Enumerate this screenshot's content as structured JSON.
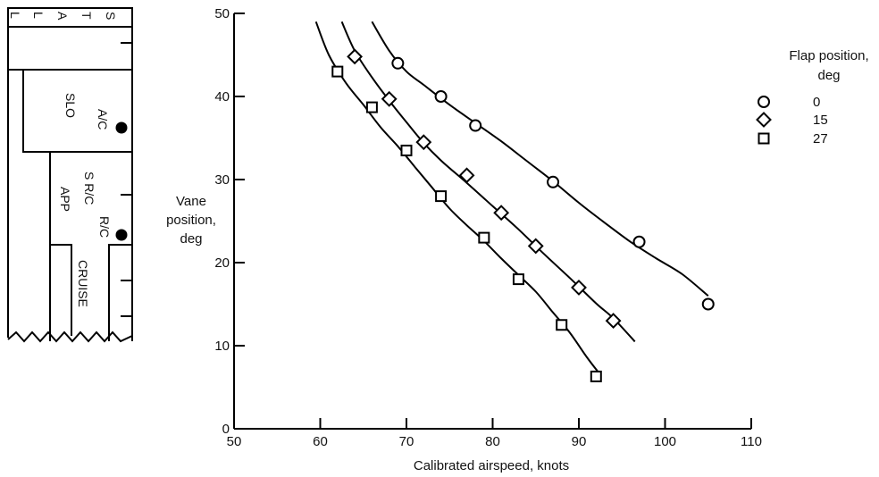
{
  "indicator": {
    "labels": {
      "stall": [
        "S",
        "T",
        "A",
        "L",
        "L"
      ],
      "slo": "SLO",
      "ac": "A/C",
      "src": "S R/C",
      "app": "APP",
      "rc": "R/C",
      "cruise": "CRUISE"
    }
  },
  "chart_data": {
    "type": "scatter",
    "xlabel": "Calibrated airspeed,  knots",
    "ylabel": [
      "Vane",
      "position,",
      "deg"
    ],
    "xlim": [
      50,
      110
    ],
    "ylim": [
      0,
      50
    ],
    "xticks": [
      50,
      60,
      70,
      80,
      90,
      100,
      110
    ],
    "yticks": [
      0,
      10,
      20,
      30,
      40,
      50
    ],
    "grid": false,
    "legend": {
      "title": [
        "Flap position,",
        "deg"
      ],
      "placement": "top-right",
      "entries": [
        "0",
        "15",
        "27"
      ]
    },
    "series": [
      {
        "name": "0",
        "marker": "circle",
        "points": [
          [
            69,
            44
          ],
          [
            74,
            40
          ],
          [
            78,
            36.5
          ],
          [
            87,
            29.7
          ],
          [
            97,
            22.5
          ],
          [
            105,
            15
          ]
        ],
        "curve": [
          [
            66,
            49
          ],
          [
            68,
            45.5
          ],
          [
            70,
            43
          ],
          [
            72,
            41.4
          ],
          [
            75,
            39
          ],
          [
            78,
            36.8
          ],
          [
            81,
            34.6
          ],
          [
            84,
            32.2
          ],
          [
            87,
            29.8
          ],
          [
            90,
            27.2
          ],
          [
            93,
            24.8
          ],
          [
            96,
            22.5
          ],
          [
            99,
            20.5
          ],
          [
            102,
            18.6
          ],
          [
            105,
            16
          ]
        ]
      },
      {
        "name": "15",
        "marker": "diamond",
        "points": [
          [
            64,
            44.8
          ],
          [
            68,
            39.7
          ],
          [
            72,
            34.5
          ],
          [
            77,
            30.5
          ],
          [
            81,
            26
          ],
          [
            85,
            22
          ],
          [
            90,
            17
          ],
          [
            94,
            13
          ]
        ],
        "curve": [
          [
            62.5,
            49
          ],
          [
            64,
            45.5
          ],
          [
            66,
            42.3
          ],
          [
            68,
            39.5
          ],
          [
            70,
            36.9
          ],
          [
            72,
            34.4
          ],
          [
            74,
            32.3
          ],
          [
            77,
            29.6
          ],
          [
            80,
            26.8
          ],
          [
            83,
            24
          ],
          [
            86,
            21
          ],
          [
            89,
            18.1
          ],
          [
            92,
            15.1
          ],
          [
            94,
            13.3
          ],
          [
            96.5,
            10.5
          ]
        ]
      },
      {
        "name": "27",
        "marker": "square",
        "points": [
          [
            62,
            43
          ],
          [
            66,
            38.7
          ],
          [
            70,
            33.5
          ],
          [
            74,
            28
          ],
          [
            79,
            23
          ],
          [
            83,
            18
          ],
          [
            88,
            12.5
          ],
          [
            92,
            6.3
          ]
        ],
        "curve": [
          [
            59.5,
            49
          ],
          [
            61,
            45
          ],
          [
            63,
            41.6
          ],
          [
            65,
            39
          ],
          [
            67,
            36.3
          ],
          [
            69,
            34
          ],
          [
            71,
            31.5
          ],
          [
            73,
            29
          ],
          [
            75,
            26.5
          ],
          [
            77,
            24.5
          ],
          [
            79,
            22.6
          ],
          [
            81,
            20.5
          ],
          [
            83,
            18.5
          ],
          [
            85,
            16.5
          ],
          [
            87,
            14
          ],
          [
            89,
            11.5
          ],
          [
            91,
            8.5
          ],
          [
            92.5,
            6.5
          ]
        ]
      }
    ]
  }
}
